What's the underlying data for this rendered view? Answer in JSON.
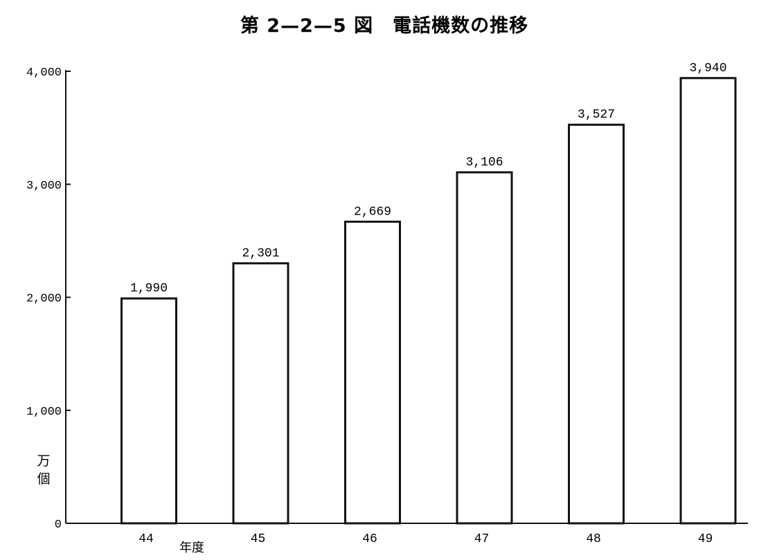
{
  "chart_data": {
    "type": "bar",
    "title": "第 2—2—5 図　電話機数の推移",
    "categories": [
      "44",
      "45",
      "46",
      "47",
      "48",
      "49"
    ],
    "values": [
      1990,
      2301,
      2669,
      3106,
      3527,
      3940
    ],
    "data_labels": [
      "1,990",
      "2,301",
      "2,669",
      "3,106",
      "3,527",
      "3,940"
    ],
    "ylim": [
      0,
      4000
    ],
    "yticks": [
      0,
      1000,
      2000,
      3000,
      4000
    ],
    "ytick_labels": [
      "0",
      "1,000",
      "2,000",
      "3,000",
      "4,000"
    ],
    "ylabel_line1": "万",
    "ylabel_line2": "個",
    "xlabel": "年度",
    "grid": false,
    "bar_fill": "#ffffff",
    "bar_stroke": "#111111"
  }
}
